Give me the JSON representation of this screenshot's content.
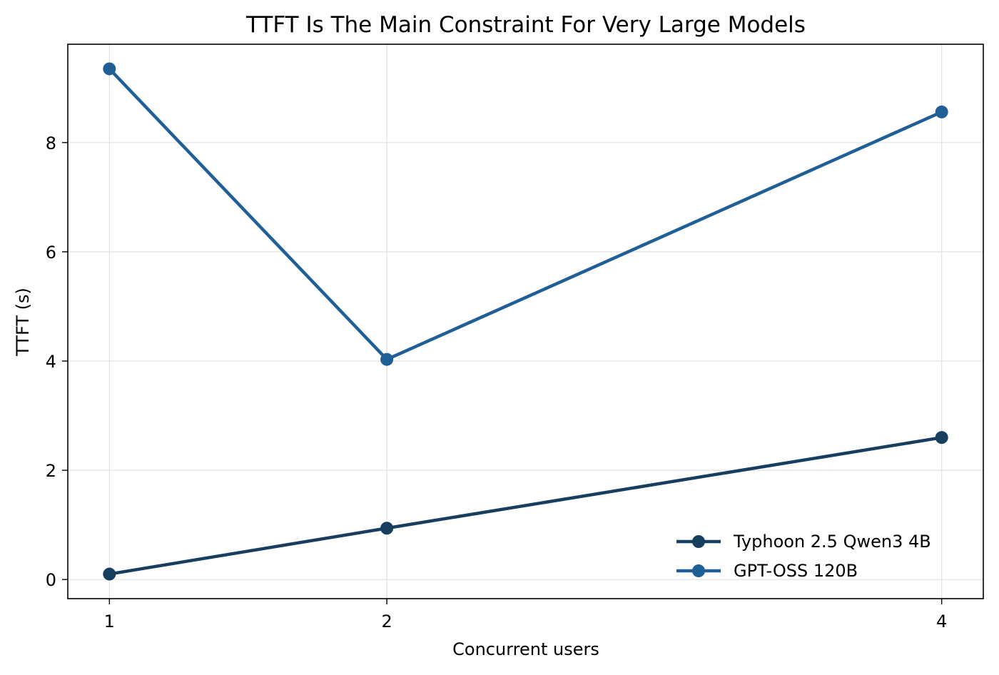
{
  "chart_data": {
    "type": "line",
    "title": "TTFT Is The Main Constraint For Very Large Models",
    "xlabel": "Concurrent users",
    "ylabel": "TTFT (s)",
    "x": [
      1,
      2,
      4
    ],
    "xticks": [
      1,
      2,
      4
    ],
    "yticks": [
      0,
      2,
      4,
      6,
      8
    ],
    "xlim": [
      0.85,
      4.15
    ],
    "ylim": [
      -0.35,
      9.8
    ],
    "grid": true,
    "legend_position": "lower-right",
    "series": [
      {
        "name": "Typhoon 2.5 Qwen3 4B",
        "values": [
          0.1,
          0.94,
          2.6
        ],
        "color": "#173d5f"
      },
      {
        "name": "GPT-OSS 120B",
        "values": [
          9.35,
          4.03,
          8.56
        ],
        "color": "#1f5f96"
      }
    ]
  }
}
